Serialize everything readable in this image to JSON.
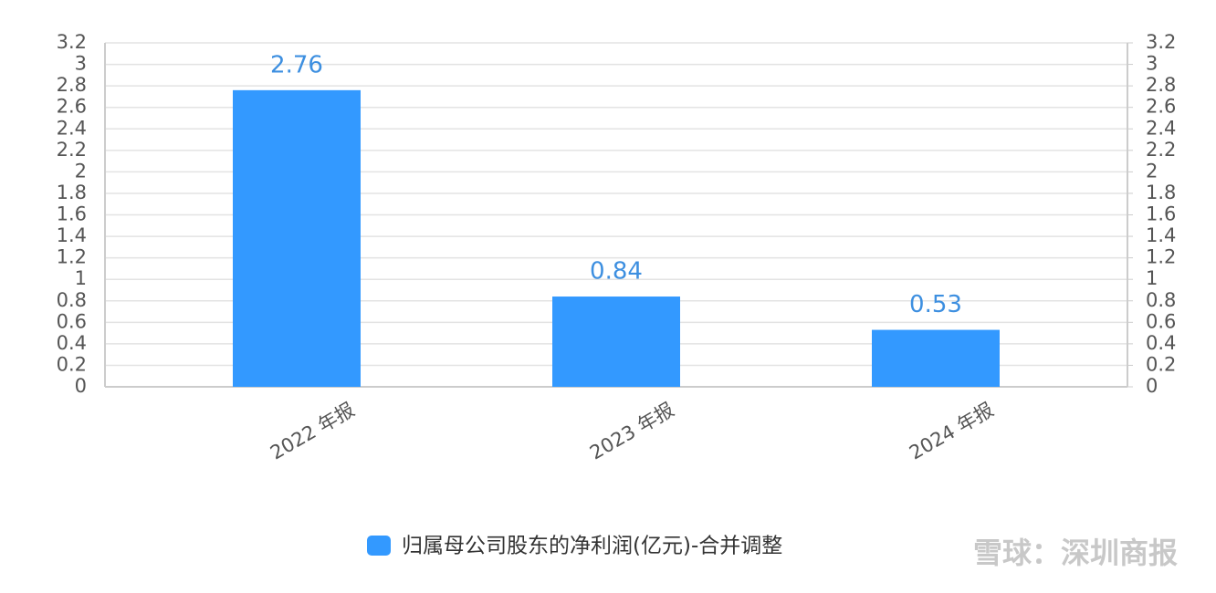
{
  "chart_data": {
    "type": "bar",
    "categories": [
      "2022 年报",
      "2023 年报",
      "2024 年报"
    ],
    "series": [
      {
        "name": "归属母公司股东的净利润(亿元)-合并调整",
        "color": "#3399ff",
        "values": [
          2.76,
          0.84,
          0.53
        ]
      }
    ],
    "ylim": [
      0,
      3.2
    ],
    "yticks": [
      0,
      0.2,
      0.4,
      0.6,
      0.8,
      1,
      1.2,
      1.4,
      1.6,
      1.8,
      2,
      2.2,
      2.4,
      2.6,
      2.8,
      3,
      3.2
    ],
    "y2lim": [
      0,
      3.2
    ],
    "y2ticks": [
      0,
      0.2,
      0.4,
      0.6,
      0.8,
      1,
      1.2,
      1.4,
      1.6,
      1.8,
      2,
      2.2,
      2.4,
      2.6,
      2.8,
      3,
      3.2
    ],
    "grid": true,
    "watermark": "雪球：深圳商报"
  }
}
